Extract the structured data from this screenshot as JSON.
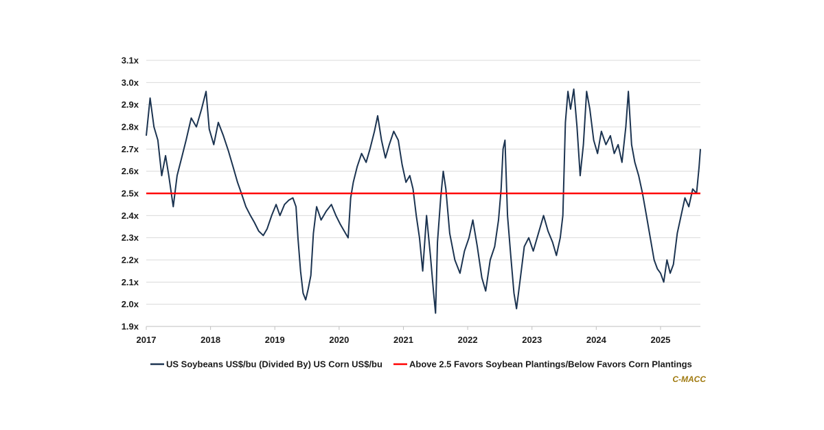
{
  "chart_data": {
    "type": "line",
    "title": "",
    "xlabel": "",
    "ylabel": "",
    "x_ticks": [
      "2017",
      "2018",
      "2019",
      "2020",
      "2021",
      "2022",
      "2023",
      "2024",
      "2025"
    ],
    "xlim": [
      2017.0,
      2025.62
    ],
    "y_ticks": [
      "1.9x",
      "2.0x",
      "2.1x",
      "2.2x",
      "2.3x",
      "2.4x",
      "2.5x",
      "2.6x",
      "2.7x",
      "2.8x",
      "2.9x",
      "3.0x",
      "3.1x"
    ],
    "ylim": [
      1.9,
      3.1
    ],
    "grid": true,
    "legend_position": "bottom",
    "series": [
      {
        "name": "US Soybeans US$/bu (Divided By) US Corn US$/bu",
        "color": "#1b3350",
        "points": [
          [
            2017.0,
            2.76
          ],
          [
            2017.0,
            2.76
          ],
          [
            2017.06,
            2.93
          ],
          [
            2017.12,
            2.8
          ],
          [
            2017.18,
            2.74
          ],
          [
            2017.24,
            2.58
          ],
          [
            2017.3,
            2.67
          ],
          [
            2017.35,
            2.58
          ],
          [
            2017.42,
            2.44
          ],
          [
            2017.48,
            2.58
          ],
          [
            2017.55,
            2.66
          ],
          [
            2017.62,
            2.74
          ],
          [
            2017.7,
            2.84
          ],
          [
            2017.78,
            2.8
          ],
          [
            2017.86,
            2.88
          ],
          [
            2017.93,
            2.96
          ],
          [
            2017.98,
            2.79
          ],
          [
            2018.05,
            2.72
          ],
          [
            2018.12,
            2.82
          ],
          [
            2018.2,
            2.76
          ],
          [
            2018.28,
            2.69
          ],
          [
            2018.35,
            2.62
          ],
          [
            2018.42,
            2.55
          ],
          [
            2018.48,
            2.5
          ],
          [
            2018.55,
            2.44
          ],
          [
            2018.62,
            2.4
          ],
          [
            2018.68,
            2.37
          ],
          [
            2018.75,
            2.33
          ],
          [
            2018.82,
            2.31
          ],
          [
            2018.88,
            2.34
          ],
          [
            2018.95,
            2.4
          ],
          [
            2019.02,
            2.45
          ],
          [
            2019.08,
            2.4
          ],
          [
            2019.15,
            2.45
          ],
          [
            2019.22,
            2.47
          ],
          [
            2019.28,
            2.48
          ],
          [
            2019.33,
            2.44
          ],
          [
            2019.36,
            2.3
          ],
          [
            2019.4,
            2.15
          ],
          [
            2019.44,
            2.05
          ],
          [
            2019.48,
            2.02
          ],
          [
            2019.52,
            2.07
          ],
          [
            2019.56,
            2.13
          ],
          [
            2019.6,
            2.32
          ],
          [
            2019.65,
            2.44
          ],
          [
            2019.72,
            2.38
          ],
          [
            2019.8,
            2.42
          ],
          [
            2019.88,
            2.45
          ],
          [
            2019.95,
            2.4
          ],
          [
            2020.02,
            2.36
          ],
          [
            2020.1,
            2.32
          ],
          [
            2020.14,
            2.3
          ],
          [
            2020.18,
            2.48
          ],
          [
            2020.22,
            2.55
          ],
          [
            2020.28,
            2.62
          ],
          [
            2020.35,
            2.68
          ],
          [
            2020.42,
            2.64
          ],
          [
            2020.48,
            2.7
          ],
          [
            2020.55,
            2.78
          ],
          [
            2020.6,
            2.85
          ],
          [
            2020.66,
            2.74
          ],
          [
            2020.72,
            2.66
          ],
          [
            2020.78,
            2.72
          ],
          [
            2020.85,
            2.78
          ],
          [
            2020.92,
            2.74
          ],
          [
            2020.98,
            2.63
          ],
          [
            2021.04,
            2.55
          ],
          [
            2021.1,
            2.58
          ],
          [
            2021.15,
            2.52
          ],
          [
            2021.2,
            2.4
          ],
          [
            2021.25,
            2.3
          ],
          [
            2021.3,
            2.15
          ],
          [
            2021.36,
            2.4
          ],
          [
            2021.42,
            2.22
          ],
          [
            2021.47,
            2.05
          ],
          [
            2021.5,
            1.96
          ],
          [
            2021.53,
            2.28
          ],
          [
            2021.58,
            2.48
          ],
          [
            2021.62,
            2.6
          ],
          [
            2021.66,
            2.52
          ],
          [
            2021.72,
            2.32
          ],
          [
            2021.8,
            2.2
          ],
          [
            2021.88,
            2.14
          ],
          [
            2021.95,
            2.24
          ],
          [
            2022.02,
            2.3
          ],
          [
            2022.08,
            2.38
          ],
          [
            2022.15,
            2.26
          ],
          [
            2022.22,
            2.12
          ],
          [
            2022.28,
            2.06
          ],
          [
            2022.35,
            2.2
          ],
          [
            2022.42,
            2.26
          ],
          [
            2022.48,
            2.38
          ],
          [
            2022.52,
            2.52
          ],
          [
            2022.55,
            2.7
          ],
          [
            2022.58,
            2.74
          ],
          [
            2022.62,
            2.4
          ],
          [
            2022.67,
            2.22
          ],
          [
            2022.72,
            2.05
          ],
          [
            2022.76,
            1.98
          ],
          [
            2022.82,
            2.12
          ],
          [
            2022.88,
            2.26
          ],
          [
            2022.95,
            2.3
          ],
          [
            2023.02,
            2.24
          ],
          [
            2023.1,
            2.32
          ],
          [
            2023.18,
            2.4
          ],
          [
            2023.25,
            2.33
          ],
          [
            2023.32,
            2.28
          ],
          [
            2023.38,
            2.22
          ],
          [
            2023.44,
            2.3
          ],
          [
            2023.48,
            2.4
          ],
          [
            2023.52,
            2.82
          ],
          [
            2023.56,
            2.96
          ],
          [
            2023.6,
            2.88
          ],
          [
            2023.65,
            2.97
          ],
          [
            2023.7,
            2.8
          ],
          [
            2023.75,
            2.58
          ],
          [
            2023.8,
            2.72
          ],
          [
            2023.85,
            2.96
          ],
          [
            2023.9,
            2.88
          ],
          [
            2023.96,
            2.74
          ],
          [
            2024.02,
            2.68
          ],
          [
            2024.08,
            2.78
          ],
          [
            2024.15,
            2.72
          ],
          [
            2024.22,
            2.76
          ],
          [
            2024.28,
            2.68
          ],
          [
            2024.34,
            2.72
          ],
          [
            2024.4,
            2.64
          ],
          [
            2024.46,
            2.8
          ],
          [
            2024.5,
            2.96
          ],
          [
            2024.55,
            2.72
          ],
          [
            2024.6,
            2.64
          ],
          [
            2024.66,
            2.58
          ],
          [
            2024.72,
            2.5
          ],
          [
            2024.78,
            2.4
          ],
          [
            2024.84,
            2.3
          ],
          [
            2024.9,
            2.2
          ],
          [
            2024.95,
            2.16
          ],
          [
            2025.0,
            2.14
          ],
          [
            2025.05,
            2.1
          ],
          [
            2025.1,
            2.2
          ],
          [
            2025.15,
            2.14
          ],
          [
            2025.2,
            2.18
          ],
          [
            2025.26,
            2.32
          ],
          [
            2025.32,
            2.4
          ],
          [
            2025.38,
            2.48
          ],
          [
            2025.44,
            2.44
          ],
          [
            2025.5,
            2.52
          ],
          [
            2025.56,
            2.5
          ],
          [
            2025.6,
            2.62
          ],
          [
            2025.62,
            2.7
          ]
        ]
      },
      {
        "name": "Above 2.5 Favors Soybean Plantings/Below Favors Corn Plantings",
        "color": "#ff0000",
        "points": [
          [
            2017.0,
            2.5
          ],
          [
            2025.62,
            2.5
          ]
        ]
      }
    ],
    "source_label": "C-MACC"
  },
  "colors": {
    "grid": "#d9d9d9",
    "axis": "#bfbfbf",
    "source": "#a07a10"
  }
}
